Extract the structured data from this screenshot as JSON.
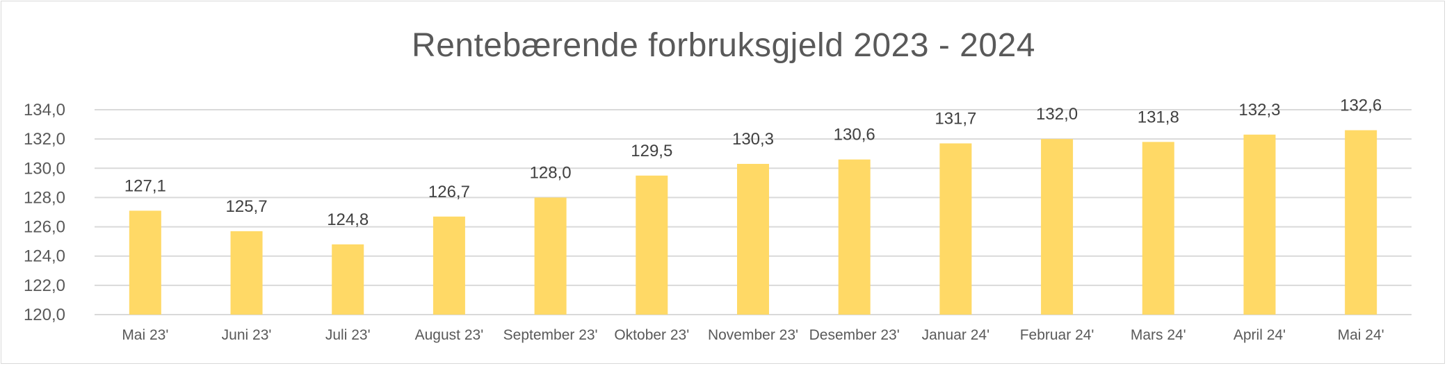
{
  "chart_data": {
    "type": "bar",
    "title": "Rentebærende forbruksgjeld 2023 - 2024",
    "xlabel": "",
    "ylabel": "",
    "ylim": [
      120,
      134
    ],
    "ytick_step": 2,
    "yticks": [
      "120,0",
      "122,0",
      "124,0",
      "126,0",
      "128,0",
      "130,0",
      "132,0",
      "134,0"
    ],
    "grid": true,
    "legend": "none",
    "bar_color": "#FFD966",
    "categories": [
      "Mai 23'",
      "Juni 23'",
      "Juli 23'",
      "August 23'",
      "September 23'",
      "Oktober 23'",
      "November 23'",
      "Desember 23'",
      "Januar 24'",
      "Februar 24'",
      "Mars 24'",
      "April 24'",
      "Mai 24'"
    ],
    "values": [
      127.1,
      125.7,
      124.8,
      126.7,
      128.0,
      129.5,
      130.3,
      130.6,
      131.7,
      132.0,
      131.8,
      132.3,
      132.6
    ],
    "data_labels": [
      "127,1",
      "125,7",
      "124,8",
      "126,7",
      "128,0",
      "129,5",
      "130,3",
      "130,6",
      "131,7",
      "132,0",
      "131,8",
      "132,3",
      "132,6"
    ]
  }
}
